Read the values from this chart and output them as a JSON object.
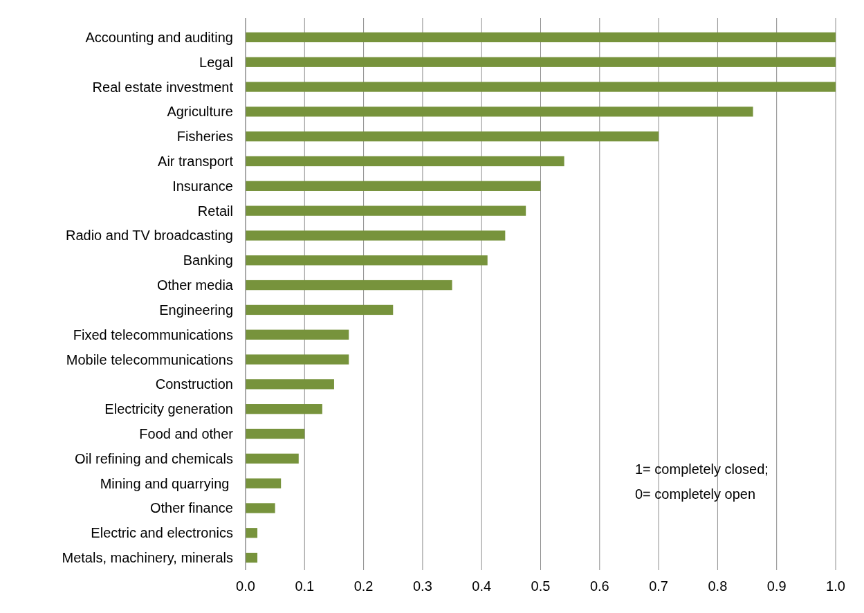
{
  "chart_data": {
    "type": "bar",
    "orientation": "horizontal",
    "categories": [
      "Accounting and auditing",
      "Legal",
      "Real estate investment",
      "Agriculture",
      "Fisheries",
      "Air transport",
      "Insurance",
      "Retail",
      "Radio and TV broadcasting",
      "Banking",
      "Other media",
      "Engineering",
      "Fixed telecommunications",
      "Mobile telecommunications",
      "Construction",
      "Electricity generation",
      "Food and other",
      "Oil refining and chemicals",
      "Mining and quarrying ",
      "Other finance",
      "Electric and electronics",
      "Metals, machinery, minerals"
    ],
    "values": [
      1.0,
      1.0,
      1.0,
      0.86,
      0.7,
      0.54,
      0.5,
      0.475,
      0.44,
      0.41,
      0.35,
      0.25,
      0.175,
      0.175,
      0.15,
      0.13,
      0.1,
      0.09,
      0.06,
      0.05,
      0.02,
      0.02
    ],
    "color": "#77933c",
    "xlim": [
      0,
      1
    ],
    "xticks": [
      {
        "value": 0,
        "label": "0.0"
      },
      0.1,
      0.2,
      0.3,
      0.4,
      0.5,
      0.6,
      0.7,
      0.8,
      0.9,
      {
        "value": 1,
        "label": "1.0"
      }
    ],
    "grid": "x",
    "annotations": [
      "1= completely closed;",
      "0= completely open"
    ]
  }
}
